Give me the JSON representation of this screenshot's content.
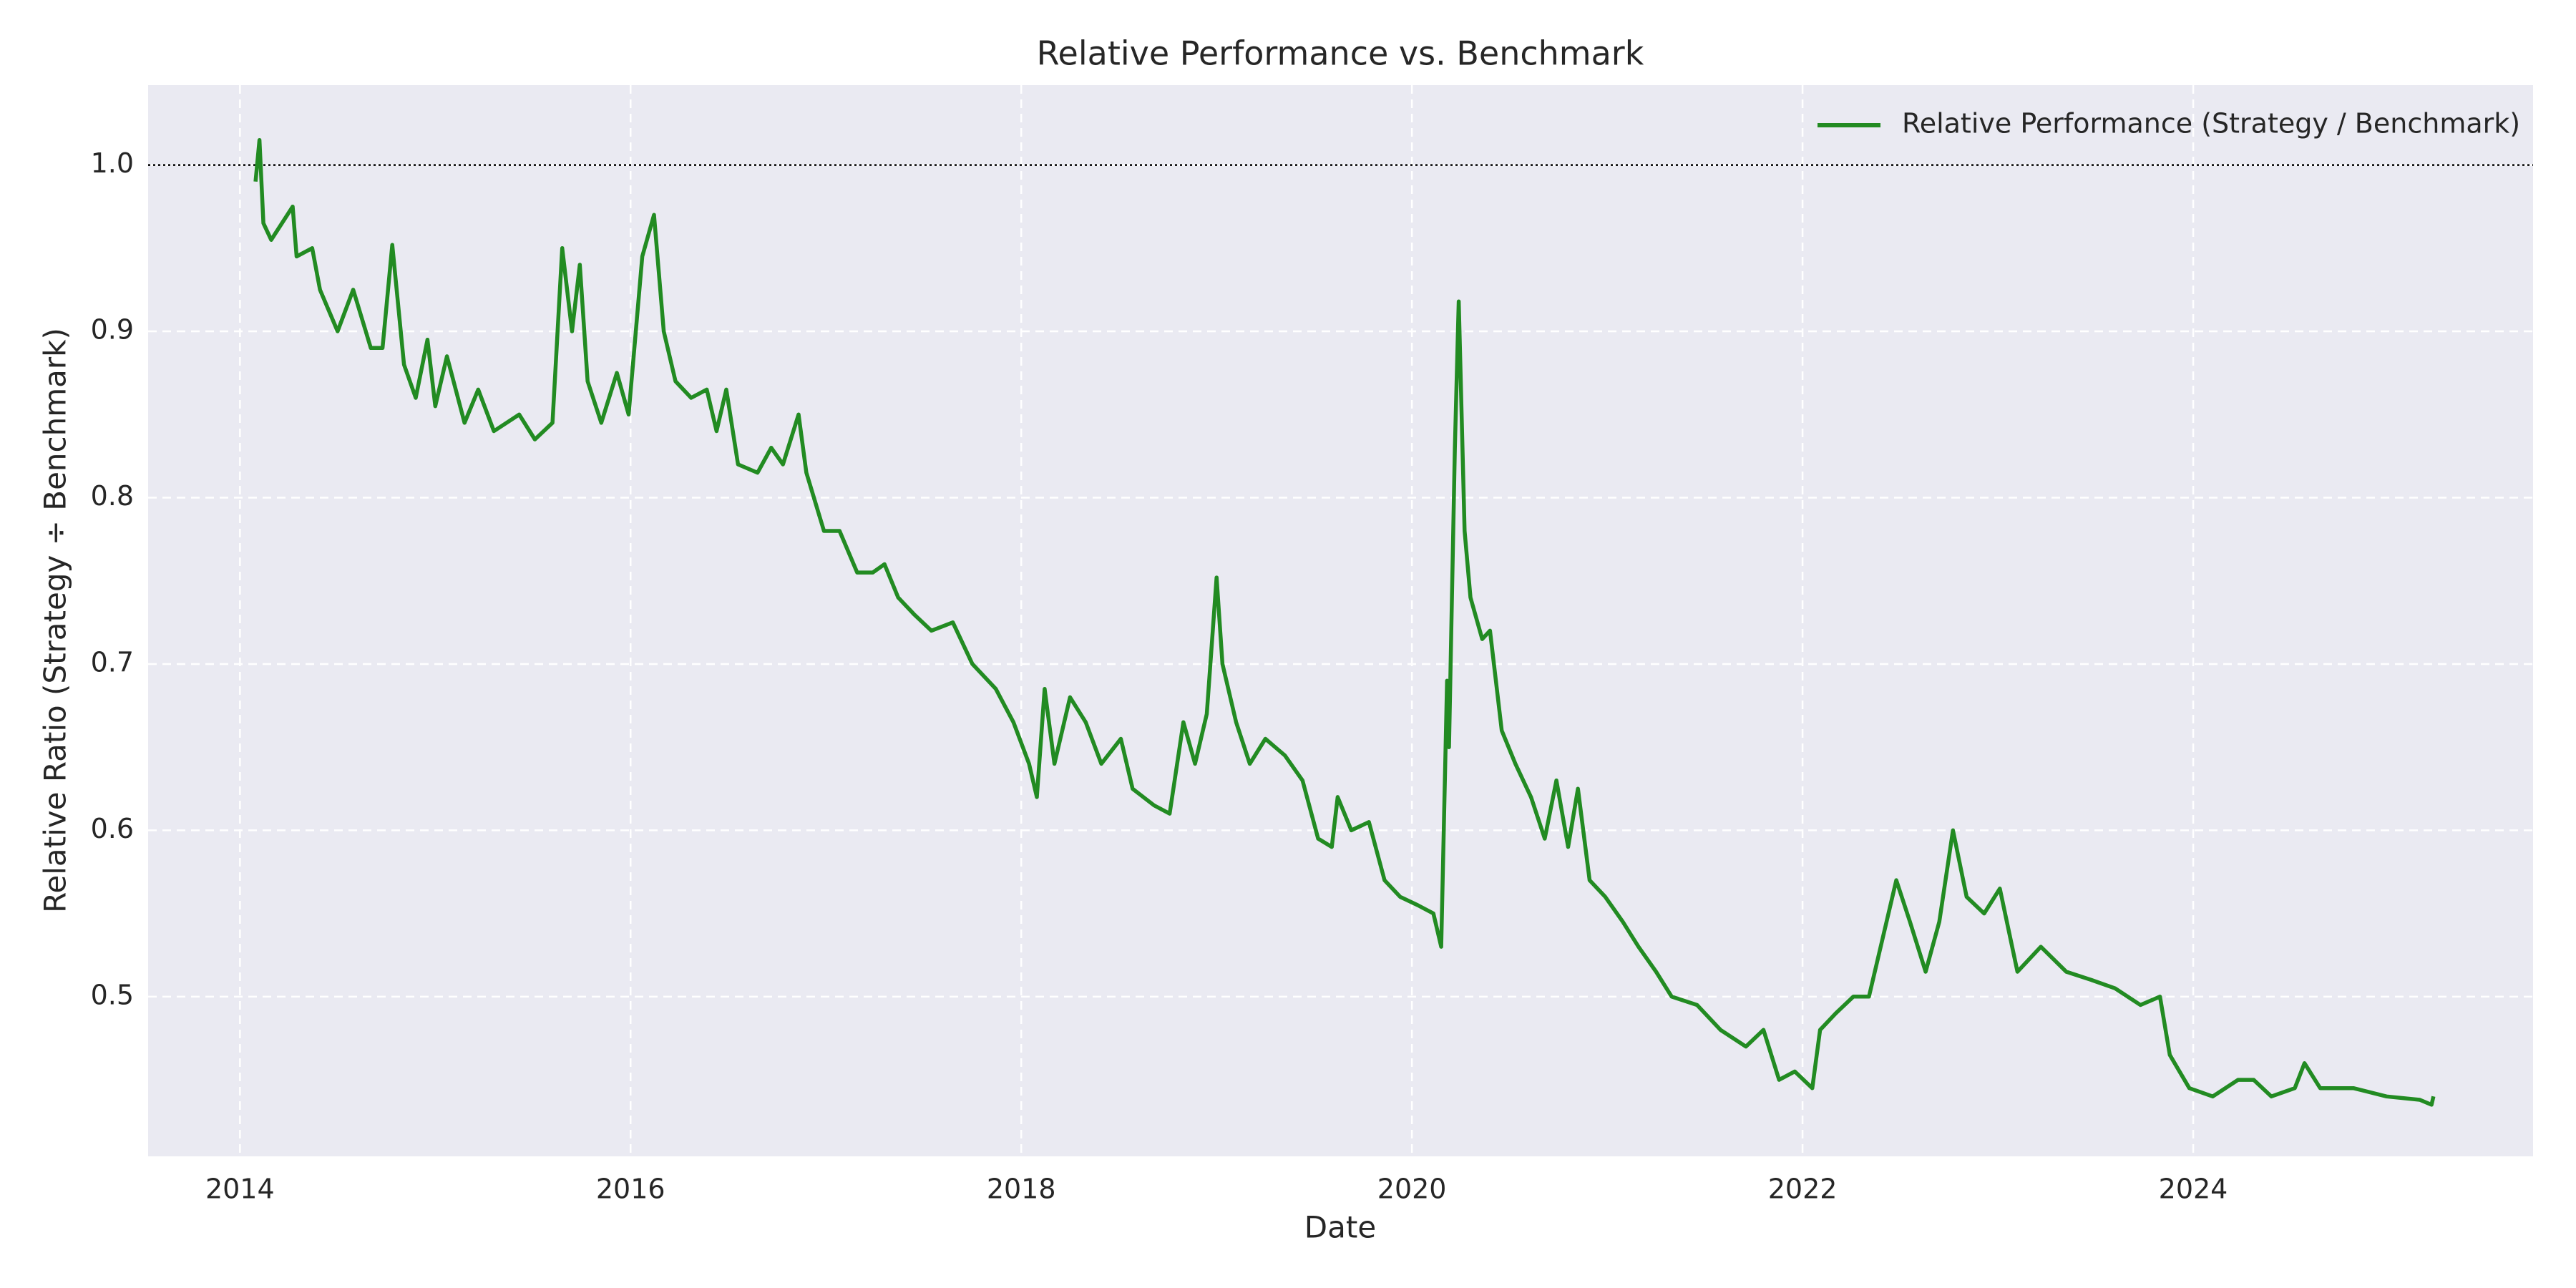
{
  "chart_data": {
    "type": "line",
    "title": "Relative Performance vs. Benchmark",
    "xlabel": "Date",
    "ylabel": "Relative Ratio (Strategy ÷ Benchmark)",
    "x": [
      2014.08,
      2014.1,
      2014.12,
      2014.16,
      2014.27,
      2014.29,
      2014.37,
      2014.41,
      2014.5,
      2014.58,
      2014.67,
      2014.73,
      2014.78,
      2014.84,
      2014.9,
      2014.96,
      2015.0,
      2015.06,
      2015.15,
      2015.22,
      2015.3,
      2015.43,
      2015.51,
      2015.6,
      2015.65,
      2015.7,
      2015.74,
      2015.78,
      2015.85,
      2015.93,
      2015.99,
      2016.06,
      2016.12,
      2016.17,
      2016.23,
      2016.31,
      2016.39,
      2016.44,
      2016.49,
      2016.55,
      2016.65,
      2016.72,
      2016.78,
      2016.86,
      2016.9,
      2016.99,
      2017.07,
      2017.16,
      2017.24,
      2017.3,
      2017.37,
      2017.45,
      2017.54,
      2017.65,
      2017.75,
      2017.87,
      2017.96,
      2018.04,
      2018.08,
      2018.12,
      2018.17,
      2018.25,
      2018.33,
      2018.41,
      2018.51,
      2018.57,
      2018.68,
      2018.76,
      2018.83,
      2018.89,
      2018.95,
      2019.0,
      2019.03,
      2019.1,
      2019.17,
      2019.25,
      2019.35,
      2019.44,
      2019.52,
      2019.59,
      2019.62,
      2019.69,
      2019.78,
      2019.86,
      2019.94,
      2020.03,
      2020.11,
      2020.15,
      2020.18,
      2020.19,
      2020.22,
      2020.24,
      2020.27,
      2020.3,
      2020.36,
      2020.4,
      2020.46,
      2020.53,
      2020.61,
      2020.68,
      2020.74,
      2020.8,
      2020.85,
      2020.91,
      2020.99,
      2021.08,
      2021.16,
      2021.25,
      2021.33,
      2021.46,
      2021.58,
      2021.71,
      2021.8,
      2021.88,
      2021.96,
      2022.05,
      2022.09,
      2022.17,
      2022.26,
      2022.34,
      2022.41,
      2022.48,
      2022.55,
      2022.63,
      2022.7,
      2022.77,
      2022.84,
      2022.93,
      2023.01,
      2023.1,
      2023.22,
      2023.35,
      2023.48,
      2023.6,
      2023.73,
      2023.83,
      2023.88,
      2023.98,
      2024.1,
      2024.23,
      2024.31,
      2024.4,
      2024.52,
      2024.57,
      2024.65,
      2024.82,
      2024.99,
      2025.16,
      2025.22,
      2025.23
    ],
    "series": [
      {
        "name": "Relative Performance (Strategy / Benchmark)",
        "color": "#228b22",
        "values": [
          0.99,
          1.015,
          0.965,
          0.955,
          0.975,
          0.945,
          0.95,
          0.925,
          0.9,
          0.925,
          0.89,
          0.89,
          0.952,
          0.88,
          0.86,
          0.895,
          0.855,
          0.885,
          0.845,
          0.865,
          0.84,
          0.85,
          0.835,
          0.845,
          0.95,
          0.9,
          0.94,
          0.87,
          0.845,
          0.875,
          0.85,
          0.945,
          0.97,
          0.9,
          0.87,
          0.86,
          0.865,
          0.84,
          0.865,
          0.82,
          0.815,
          0.83,
          0.82,
          0.85,
          0.815,
          0.78,
          0.78,
          0.755,
          0.755,
          0.76,
          0.74,
          0.73,
          0.72,
          0.725,
          0.7,
          0.685,
          0.665,
          0.64,
          0.62,
          0.685,
          0.64,
          0.68,
          0.665,
          0.64,
          0.655,
          0.625,
          0.615,
          0.61,
          0.665,
          0.64,
          0.67,
          0.752,
          0.7,
          0.665,
          0.64,
          0.655,
          0.645,
          0.63,
          0.595,
          0.59,
          0.62,
          0.6,
          0.605,
          0.57,
          0.56,
          0.555,
          0.55,
          0.53,
          0.69,
          0.65,
          0.83,
          0.918,
          0.78,
          0.74,
          0.715,
          0.72,
          0.66,
          0.64,
          0.62,
          0.595,
          0.63,
          0.59,
          0.625,
          0.57,
          0.56,
          0.545,
          0.53,
          0.515,
          0.5,
          0.495,
          0.48,
          0.47,
          0.48,
          0.45,
          0.455,
          0.445,
          0.48,
          0.49,
          0.5,
          0.5,
          0.535,
          0.57,
          0.545,
          0.515,
          0.545,
          0.6,
          0.56,
          0.55,
          0.565,
          0.515,
          0.53,
          0.515,
          0.51,
          0.505,
          0.495,
          0.5,
          0.465,
          0.445,
          0.44,
          0.45,
          0.45,
          0.44,
          0.445,
          0.46,
          0.445,
          0.445,
          0.44,
          0.438,
          0.435,
          0.44
        ]
      }
    ],
    "xlim": [
      2013.53,
      2025.74
    ],
    "xticks": [
      2014,
      2016,
      2018,
      2020,
      2022,
      2024
    ],
    "ylim": [
      0.404,
      1.048
    ],
    "yticks": [
      0.5,
      0.6,
      0.7,
      0.8,
      0.9,
      {
        "value": 1,
        "label": "1.0"
      }
    ],
    "hline": 1,
    "grid": true,
    "legend": "upper right"
  }
}
